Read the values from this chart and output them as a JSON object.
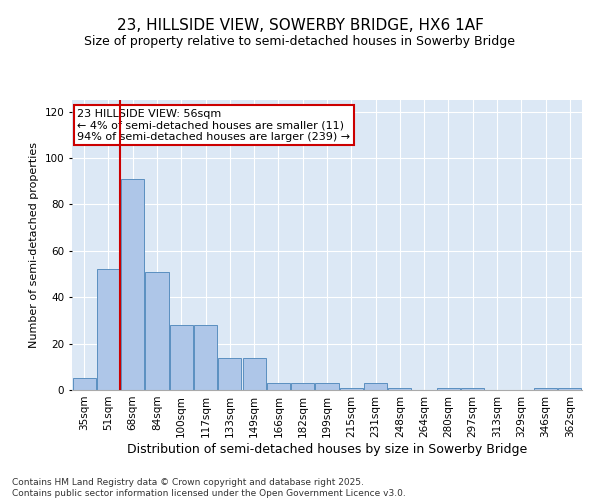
{
  "title": "23, HILLSIDE VIEW, SOWERBY BRIDGE, HX6 1AF",
  "subtitle": "Size of property relative to semi-detached houses in Sowerby Bridge",
  "xlabel": "Distribution of semi-detached houses by size in Sowerby Bridge",
  "ylabel": "Number of semi-detached properties",
  "categories": [
    "35sqm",
    "51sqm",
    "68sqm",
    "84sqm",
    "100sqm",
    "117sqm",
    "133sqm",
    "149sqm",
    "166sqm",
    "182sqm",
    "199sqm",
    "215sqm",
    "231sqm",
    "248sqm",
    "264sqm",
    "280sqm",
    "297sqm",
    "313sqm",
    "329sqm",
    "346sqm",
    "362sqm"
  ],
  "values": [
    5,
    52,
    91,
    51,
    28,
    28,
    14,
    14,
    3,
    3,
    3,
    1,
    3,
    1,
    0,
    1,
    1,
    0,
    0,
    1,
    1
  ],
  "bar_color": "#aec6e8",
  "bar_edge_color": "#5a8fc0",
  "vline_x_index": 1,
  "vline_color": "#cc0000",
  "annotation_text": "23 HILLSIDE VIEW: 56sqm\n← 4% of semi-detached houses are smaller (11)\n94% of semi-detached houses are larger (239) →",
  "annotation_box_color": "#ffffff",
  "annotation_box_edge": "#cc0000",
  "ylim": [
    0,
    125
  ],
  "yticks": [
    0,
    20,
    40,
    60,
    80,
    100,
    120
  ],
  "background_color": "#dce8f5",
  "footer": "Contains HM Land Registry data © Crown copyright and database right 2025.\nContains public sector information licensed under the Open Government Licence v3.0.",
  "title_fontsize": 11,
  "subtitle_fontsize": 9,
  "xlabel_fontsize": 9,
  "ylabel_fontsize": 8,
  "tick_fontsize": 7.5,
  "footer_fontsize": 6.5,
  "annotation_fontsize": 8
}
